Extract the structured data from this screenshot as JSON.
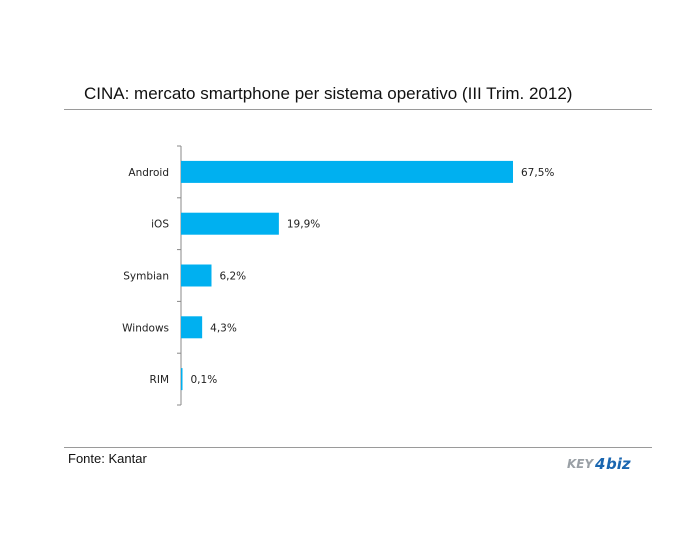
{
  "header": {
    "title": "CINA: mercato smartphone per sistema operativo (III Trim. 2012)"
  },
  "footer": {
    "source": "Fonte: Kantar",
    "logo_text": "KEY4biz"
  },
  "colors": {
    "bar": "#00b0f0",
    "axis": "#888888",
    "logo_gray": "#9aa0a6",
    "logo_blue": "#1a66b0"
  },
  "chart_data": {
    "type": "bar",
    "orientation": "horizontal",
    "title": "CINA: mercato smartphone per sistema operativo (III Trim. 2012)",
    "categories": [
      "Android",
      "iOS",
      "Symbian",
      "Windows",
      "RIM"
    ],
    "values": [
      67.5,
      19.9,
      6.2,
      4.3,
      0.1
    ],
    "data_labels": [
      "67,5%",
      "19,9%",
      "6,2%",
      "4,3%",
      "0,1%"
    ],
    "unit": "%",
    "grid": false,
    "legend": "none"
  }
}
